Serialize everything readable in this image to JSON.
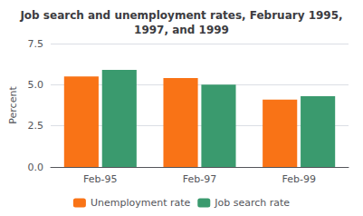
{
  "chart_data": {
    "type": "bar",
    "title": "Job search and unemployment rates, February 1995,\n1997, and 1999",
    "categories": [
      "Feb-95",
      "Feb-97",
      "Feb-99"
    ],
    "series": [
      {
        "name": "Unemployment rate",
        "color": "#F97316",
        "values": [
          5.5,
          5.4,
          4.1
        ]
      },
      {
        "name": "Job search rate",
        "color": "#3A9A6E",
        "values": [
          5.9,
          5.0,
          4.3
        ]
      }
    ],
    "ylabel": "Percent",
    "ylim": [
      0,
      7.5
    ],
    "yticks": [
      {
        "value": 0,
        "label": "0.0"
      },
      2.5,
      {
        "value": 5,
        "label": "5.0"
      },
      7.5
    ],
    "grid": true,
    "legend": "bottom"
  }
}
